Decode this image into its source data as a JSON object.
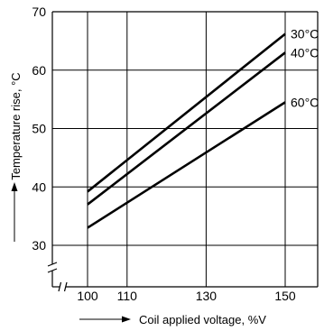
{
  "chart_data": {
    "type": "line",
    "title": "",
    "xlabel": "Coil applied voltage, %V",
    "ylabel": "Temperature rise, °C",
    "x_ticks": [
      100,
      110,
      130,
      150
    ],
    "x_tick_labels": [
      "100",
      "110",
      "130",
      "150"
    ],
    "y_ticks": [
      30,
      40,
      50,
      60,
      70
    ],
    "y_tick_labels": [
      "30",
      "40",
      "50",
      "60",
      "70"
    ],
    "xlim": [
      90,
      160
    ],
    "ylim": [
      25,
      70
    ],
    "axis_breaks": [
      "x",
      "y"
    ],
    "grid": true,
    "series": [
      {
        "name": "30°C",
        "x": [
          100,
          150
        ],
        "y": [
          39.2,
          66.2
        ]
      },
      {
        "name": "40°C",
        "x": [
          100,
          150
        ],
        "y": [
          37.0,
          63.0
        ]
      },
      {
        "name": "60°C",
        "x": [
          100,
          150
        ],
        "y": [
          33.0,
          54.5
        ]
      }
    ]
  },
  "colors": {
    "line": "#000000",
    "grid": "#000000",
    "background": "#ffffff"
  }
}
